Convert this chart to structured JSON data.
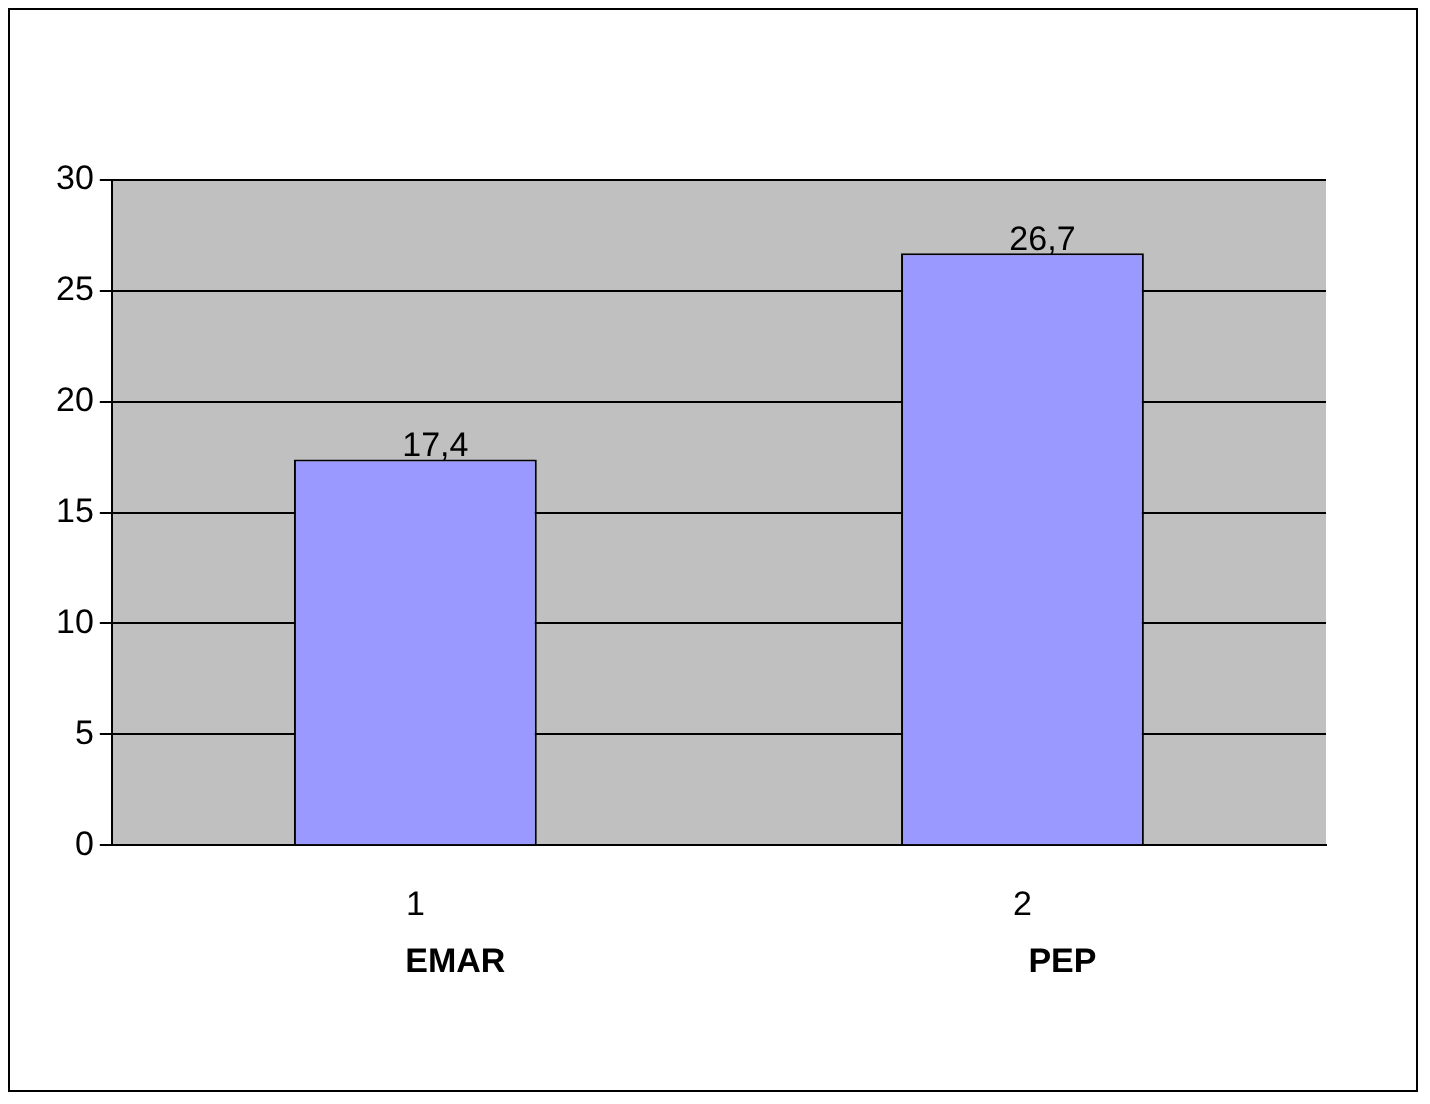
{
  "chart_data": {
    "type": "bar",
    "categories": [
      "1",
      "2"
    ],
    "values": [
      17.4,
      26.7
    ],
    "color": "#9999ff",
    "value_labels": [
      "17,4",
      "26,7"
    ],
    "ylim": [
      0,
      30
    ],
    "yticks": [
      0,
      5,
      10,
      15,
      20,
      25,
      30
    ],
    "grid": "y",
    "legend": false,
    "annotations": [
      "EMAR",
      "PEP"
    ]
  }
}
